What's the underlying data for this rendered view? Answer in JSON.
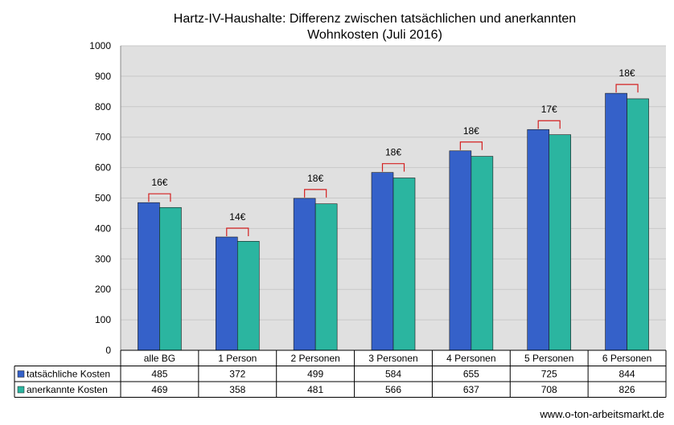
{
  "chart_data": {
    "type": "bar",
    "title": [
      "Hartz-IV-Haushalte:  Differenz zwischen tatsächlichen und anerkannten",
      "Wohnkosten (Juli 2016)"
    ],
    "categories": [
      "alle BG",
      "1 Person",
      "2 Personen",
      "3 Personen",
      "4 Personen",
      "5 Personen",
      "6 Personen"
    ],
    "series": [
      {
        "name": "tatsächliche Kosten",
        "values": [
          485,
          372,
          499,
          584,
          655,
          725,
          844
        ],
        "color": "#3561c9"
      },
      {
        "name": "anerkannte Kosten",
        "values": [
          469,
          358,
          481,
          566,
          637,
          708,
          826
        ],
        "color": "#2bb5a0"
      }
    ],
    "differences": [
      "16€",
      "14€",
      "18€",
      "18€",
      "18€",
      "17€",
      "18€"
    ],
    "ylim": [
      0,
      1000
    ],
    "yticks": [
      0,
      100,
      200,
      300,
      400,
      500,
      600,
      700,
      800,
      900,
      1000
    ],
    "grid": true,
    "data_table": true,
    "plot_background": "#e0e0e0",
    "bracket_color": "#d32020"
  },
  "source": "www.o-ton-arbeitsmarkt.de"
}
